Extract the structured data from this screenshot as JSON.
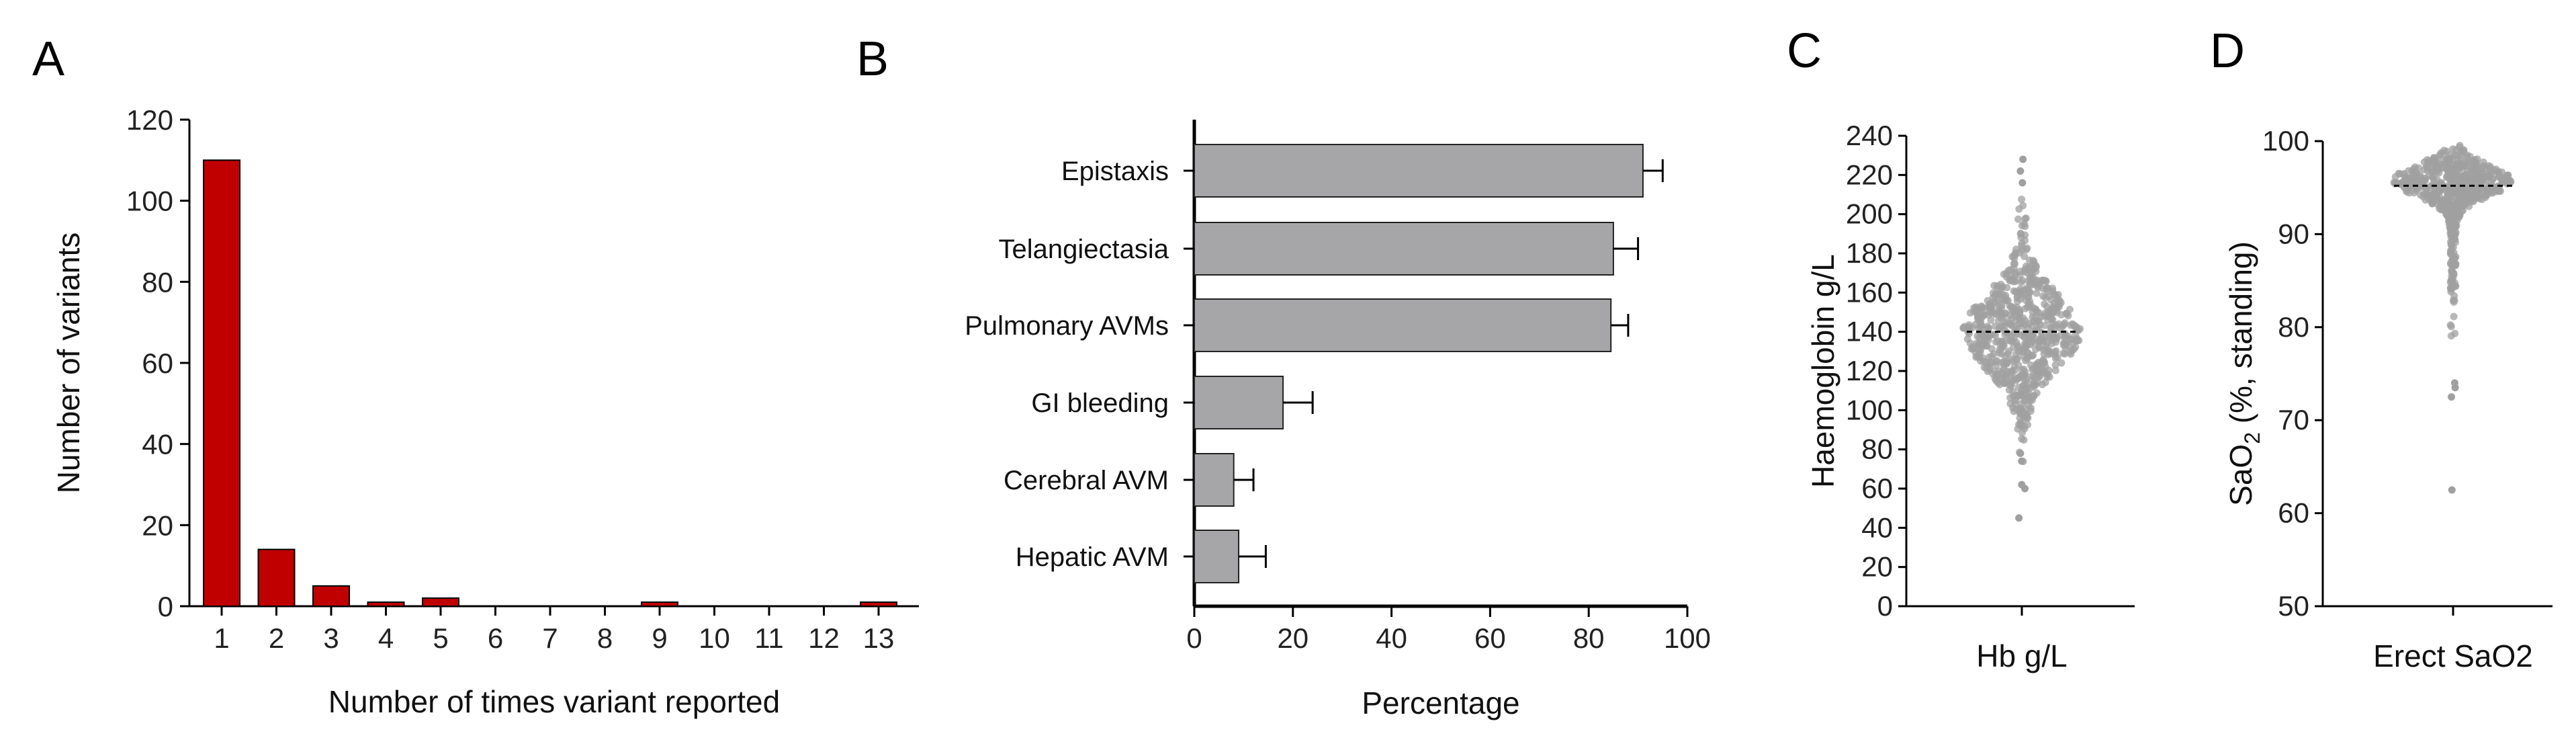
{
  "figure": {
    "panels": [
      "A",
      "B",
      "C",
      "D"
    ]
  },
  "colors": {
    "bar_red": "#c00000",
    "bar_grey": "#a6a6a8",
    "dot_grey": "#a0a0a0",
    "median_line": "#000000"
  },
  "chart_data": [
    {
      "panel": "A",
      "type": "bar",
      "categories": [
        "1",
        "2",
        "3",
        "4",
        "5",
        "6",
        "7",
        "8",
        "9",
        "10",
        "11",
        "12",
        "13"
      ],
      "values": [
        110,
        14,
        5,
        1,
        2,
        0,
        0,
        0,
        1,
        0,
        0,
        0,
        1
      ],
      "xlabel": "Number of times variant reported",
      "ylabel": "Number of variants",
      "ylim": [
        0,
        120
      ],
      "yticks": [
        0,
        20,
        40,
        60,
        80,
        100,
        120
      ]
    },
    {
      "panel": "B",
      "type": "bar",
      "orientation": "horizontal",
      "categories": [
        "Epistaxis",
        "Telangiectasia",
        "Pulmonary AVMs",
        "GI bleeding",
        "Cerebral AVM",
        "Hepatic AVM"
      ],
      "values": [
        91,
        85,
        84.5,
        18,
        8,
        9
      ],
      "errors": [
        4,
        5,
        3.5,
        6,
        4,
        5.5
      ],
      "xlabel": "Percentage",
      "xlim": [
        0,
        100
      ],
      "xticks": [
        0,
        20,
        40,
        60,
        80,
        100
      ]
    },
    {
      "panel": "C",
      "type": "scatter",
      "subtype": "violin-dot",
      "category": "Hb g/L",
      "ylabel": "Haemoglobin g/L",
      "ylim": [
        0,
        240
      ],
      "yticks": [
        0,
        20,
        40,
        60,
        80,
        100,
        120,
        140,
        160,
        180,
        200,
        220,
        240
      ],
      "median": 140,
      "min": 45,
      "max": 228,
      "bulk_low": 95,
      "bulk_high": 185
    },
    {
      "panel": "D",
      "type": "scatter",
      "subtype": "violin-dot",
      "category": "Erect SaO2",
      "ylabel_main": "SaO",
      "ylabel_sub": "2",
      "ylabel_rest": " (%, standing)",
      "ylim": [
        50,
        100
      ],
      "yticks": [
        50,
        60,
        70,
        80,
        90,
        100
      ],
      "median": 95.2,
      "min": 62.5,
      "max": 99.8,
      "bulk_low": 85,
      "bulk_high": 99.5
    }
  ]
}
